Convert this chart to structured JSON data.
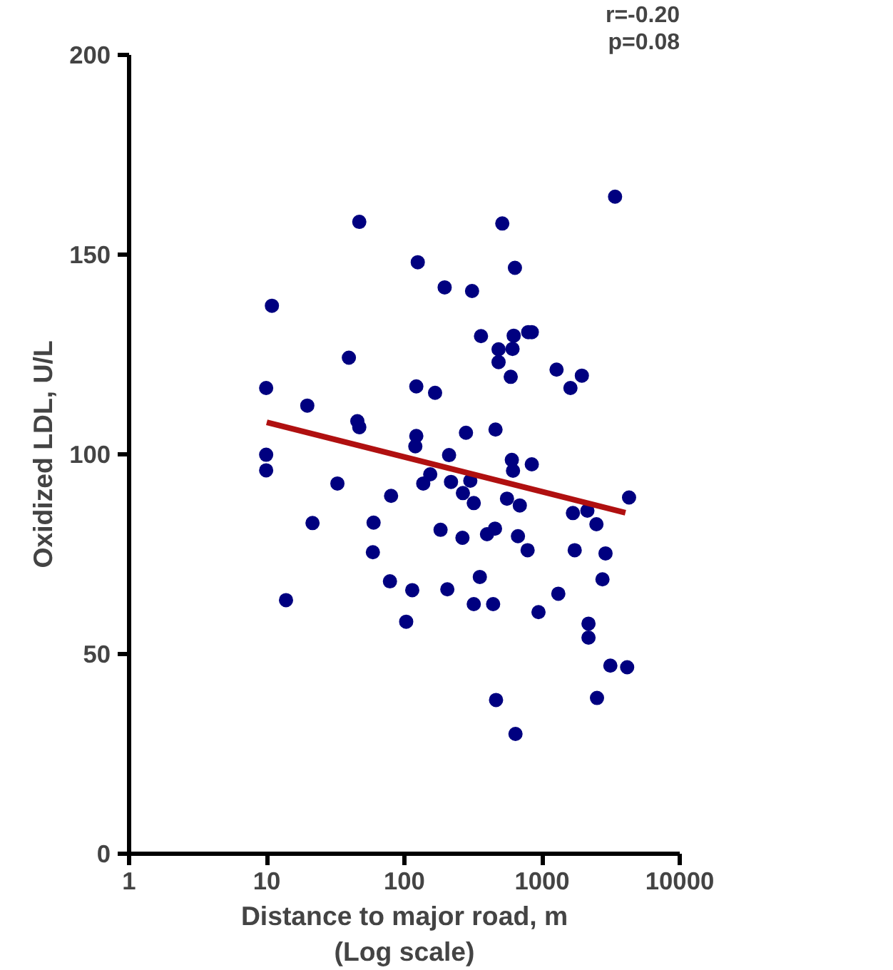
{
  "chart_data": {
    "type": "scatter",
    "xlabel": "Distance to major road, m\n(Log scale)",
    "ylabel": "Oxidized LDL, U/L",
    "log": "x",
    "xlim": [
      1,
      10000
    ],
    "ylim": [
      0,
      200
    ],
    "xticks": [
      1,
      10,
      100,
      1000,
      10000
    ],
    "yticks": [
      0,
      50,
      100,
      150,
      200
    ],
    "grid": false,
    "annotations": [
      "r=-0.20",
      "p=0.08"
    ],
    "series": [
      {
        "color": "#000080",
        "marker": "circle",
        "x": [
          47,
          125,
          196,
          10.9,
          39.5,
          9.9,
          19.7,
          122,
          167,
          45.5,
          47,
          9.9,
          9.9,
          122,
          120,
          211,
          32.6,
          154,
          137,
          218,
          80,
          21.5,
          59.7,
          183,
          59,
          78.5,
          114,
          205,
          13.8,
          103,
          3390,
          514,
          635,
          310,
          360,
          622,
          793,
          842,
          483,
          610,
          483,
          592,
          1274,
          1945,
          1607,
          280,
          459,
          603,
          615,
          842,
          301,
          266,
          319,
          556,
          689,
          1675,
          2133,
          4284,
          2482,
          264,
          398,
          455,
          668,
          785,
          1726,
          2890,
          2746,
          353,
          319,
          441,
          1312,
          942,
          2174,
          2174,
          3133,
          4150,
          463,
          2506,
          641
        ],
        "values": [
          158.2,
          148.1,
          141.8,
          137.2,
          124.2,
          116.6,
          112.2,
          117.0,
          115.4,
          108.3,
          106.8,
          99.9,
          96.0,
          104.6,
          102.0,
          99.8,
          92.7,
          95.0,
          92.7,
          93.1,
          89.6,
          82.8,
          82.9,
          81.1,
          75.5,
          68.2,
          66.0,
          66.2,
          63.5,
          58.1,
          164.5,
          157.8,
          146.7,
          140.9,
          129.6,
          129.7,
          130.6,
          130.6,
          126.3,
          126.4,
          123.1,
          119.4,
          121.2,
          119.7,
          116.6,
          105.4,
          106.2,
          98.6,
          95.9,
          97.5,
          93.4,
          90.3,
          87.8,
          88.9,
          87.2,
          85.3,
          85.9,
          89.2,
          82.5,
          79.1,
          80.0,
          81.4,
          79.5,
          76.0,
          76.0,
          75.2,
          68.7,
          69.3,
          62.5,
          62.5,
          65.1,
          60.5,
          57.6,
          54.1,
          47.1,
          46.7,
          38.5,
          39.0,
          30.0
        ]
      },
      {
        "type": "line",
        "marker": "none",
        "color": "#b01010",
        "x": [
          10,
          4030
        ],
        "values": [
          108,
          85.4
        ]
      }
    ]
  }
}
